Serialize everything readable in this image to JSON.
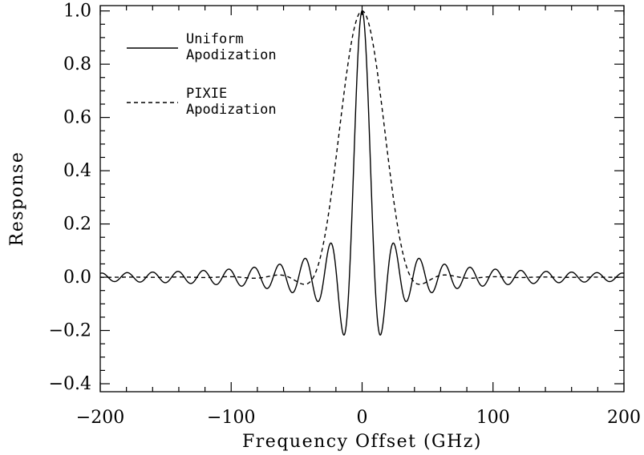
{
  "chart_data": {
    "type": "line",
    "title": "",
    "xlabel": "Frequency Offset (GHz)",
    "ylabel": "Response",
    "xlim": [
      -200,
      200
    ],
    "ylim": [
      -0.43,
      1.02
    ],
    "x_ticks": [
      -200,
      -100,
      0,
      100,
      200
    ],
    "x_tick_labels": [
      "−200",
      "−100",
      "0",
      "100",
      "200"
    ],
    "y_ticks": [
      -0.4,
      -0.2,
      0.0,
      0.2,
      0.4,
      0.6,
      0.8,
      1.0
    ],
    "y_tick_labels": [
      "−0.4",
      "−0.2",
      "0.0",
      "0.2",
      "0.4",
      "0.6",
      "0.8",
      "1.0"
    ],
    "grid": false,
    "legend_position": "top-left",
    "series": [
      {
        "name": "Uniform Apodization",
        "legend_lines": [
          "Uniform",
          "Apodization"
        ],
        "line_style": "solid",
        "color": "#000000",
        "model": "sinc",
        "first_null_ghz": 9.7
      },
      {
        "name": "PIXIE Apodization",
        "legend_lines": [
          "PIXIE",
          "Apodization"
        ],
        "line_style": "dashed",
        "color": "#000000",
        "model": "apodized-sinc",
        "first_null_ghz": 18.6
      }
    ]
  }
}
